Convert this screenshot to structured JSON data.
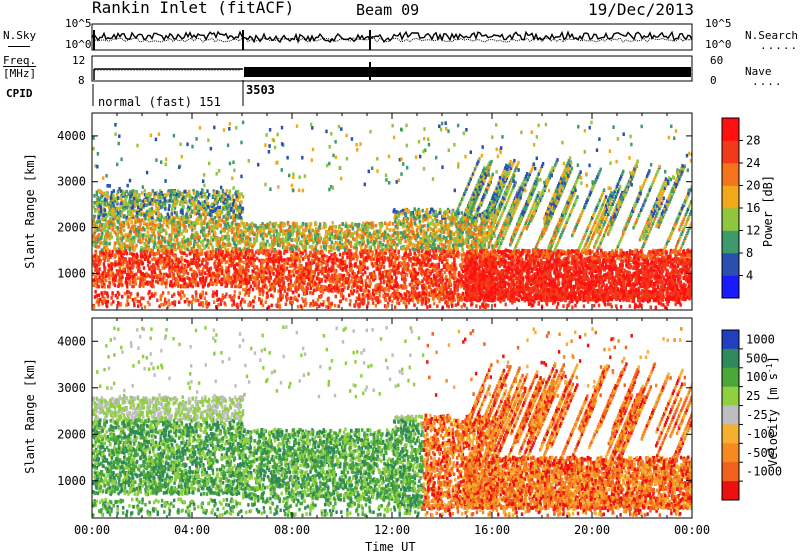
{
  "header": {
    "station": "Rankin Inlet (fitACF)",
    "beam": "Beam 09",
    "date": "19/Dec/2013"
  },
  "strips": {
    "nsky_label": "N.Sky",
    "nsearch_label": "N.Search",
    "nsky_ticks": [
      "10^5",
      "10^0"
    ],
    "nsearch_ticks": [
      "10^5",
      "10^0"
    ],
    "freq_label_1": "Freq.",
    "freq_label_2": "[MHz]",
    "freq_ticks": [
      "12",
      "8"
    ],
    "nave_label": "Nave",
    "nave_ticks": [
      "60",
      "0"
    ],
    "cpid_label": "CPID",
    "cpid_mode_1": "normal (fast) 151",
    "cpid_mode_2": "3503"
  },
  "panels": {
    "y_label": "Slant Range [km]",
    "y_ticks": [
      "4000",
      "3000",
      "2000",
      "1000"
    ],
    "x_ticks": [
      "00:00",
      "04:00",
      "08:00",
      "12:00",
      "16:00",
      "20:00",
      "00:00"
    ],
    "x_label": "Time UT"
  },
  "chart_data": [
    {
      "type": "heatmap",
      "title": "",
      "xlabel": "Time UT",
      "ylabel": "Slant Range [km]",
      "x": [
        "00:00",
        "04:00",
        "08:00",
        "12:00",
        "16:00",
        "20:00",
        "00:00"
      ],
      "y_ticks": [
        1000,
        2000,
        3000,
        4000
      ],
      "ylim": [
        200,
        4500
      ],
      "colorbar": {
        "label": "Power [dB]",
        "ticks": [
          4,
          8,
          12,
          16,
          20,
          24,
          28
        ],
        "colors": [
          "#1a1aff",
          "#2a4fae",
          "#3d9a6a",
          "#8ec63f",
          "#f2a818",
          "#f4741c",
          "#f23a1a",
          "#ff1010"
        ]
      }
    },
    {
      "type": "heatmap",
      "title": "",
      "xlabel": "Time UT",
      "ylabel": "Slant Range [km]",
      "x": [
        "00:00",
        "04:00",
        "08:00",
        "12:00",
        "16:00",
        "20:00",
        "00:00"
      ],
      "y_ticks": [
        1000,
        2000,
        3000,
        4000
      ],
      "ylim": [
        200,
        4500
      ],
      "colorbar": {
        "label": "Velocity [m s-1]",
        "ticks": [
          1000,
          500,
          100,
          25,
          -25,
          -100,
          -500,
          -1000
        ],
        "colors": [
          "#2040c0",
          "#2f8a5a",
          "#4aa83a",
          "#8fd040",
          "#bebebe",
          "#f5b030",
          "#f58a20",
          "#f2601c",
          "#ee1010"
        ]
      }
    }
  ]
}
